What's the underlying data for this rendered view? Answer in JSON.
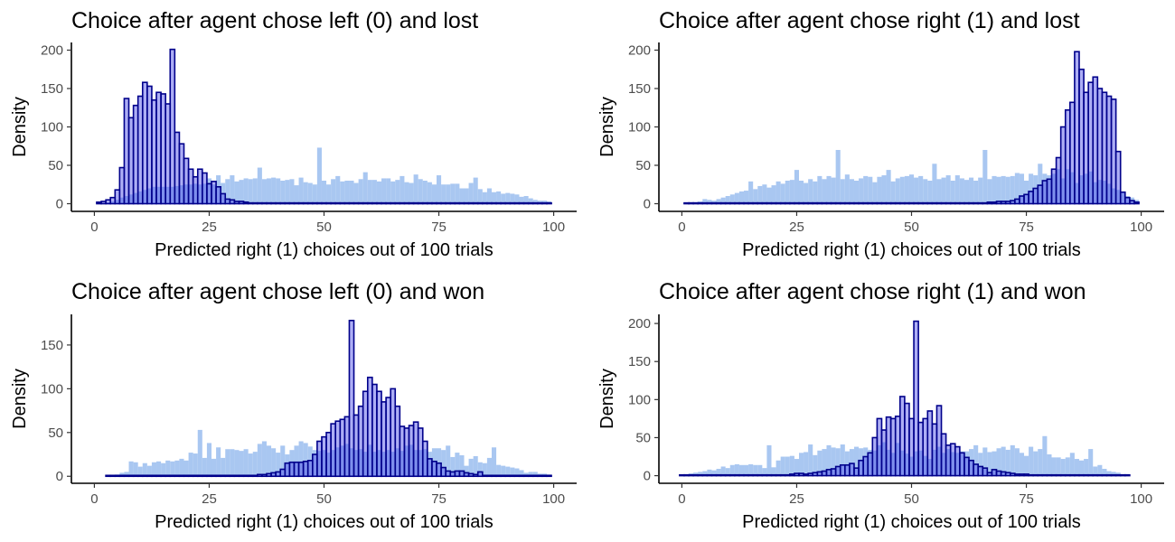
{
  "chart_data": [
    {
      "type": "bar",
      "title": "Choice after agent chose left (0) and lost",
      "xlabel": "Predicted right (1) choices out of 100 trials",
      "ylabel": "Density",
      "xlim": [
        -5,
        105
      ],
      "ylim": [
        -10,
        210
      ],
      "xticks": [
        0,
        25,
        50,
        75,
        100
      ],
      "yticks": [
        0,
        50,
        100,
        150,
        200
      ],
      "xtick_labels": [
        "0",
        "25",
        "50",
        "75",
        "100"
      ],
      "ytick_labels": [
        "0",
        "50",
        "100",
        "150",
        "200"
      ],
      "series": [
        {
          "role": "prior",
          "x_start": 1,
          "values": [
            1,
            1,
            2,
            3,
            5,
            8,
            10,
            12,
            14,
            16,
            18,
            20,
            22,
            22,
            22,
            22,
            22,
            23,
            24,
            25,
            25,
            26,
            25,
            26,
            33,
            25,
            37,
            27,
            32,
            37,
            29,
            31,
            33,
            32,
            33,
            47,
            32,
            33,
            34,
            33,
            30,
            31,
            32,
            24,
            34,
            28,
            27,
            25,
            73,
            30,
            25,
            32,
            36,
            29,
            30,
            30,
            27,
            32,
            41,
            31,
            31,
            29,
            33,
            33,
            29,
            31,
            36,
            28,
            27,
            38,
            32,
            30,
            28,
            25,
            37,
            25,
            25,
            26,
            26,
            20,
            20,
            27,
            34,
            19,
            15,
            20,
            15,
            16,
            13,
            14,
            13,
            12,
            9,
            10,
            7,
            5,
            4,
            4,
            3
          ]
        },
        {
          "role": "posterior",
          "x_start": 1,
          "values": [
            2,
            3,
            5,
            8,
            18,
            47,
            137,
            112,
            128,
            140,
            158,
            153,
            135,
            145,
            143,
            130,
            201,
            93,
            78,
            59,
            45,
            35,
            45,
            40,
            26,
            29,
            22,
            13,
            6,
            5,
            3,
            3,
            2,
            1,
            1,
            1,
            1,
            1,
            1,
            1,
            1,
            1,
            1,
            1,
            1,
            1,
            1,
            1,
            1,
            1,
            1,
            1,
            1,
            1,
            1,
            1,
            1,
            1,
            1,
            1,
            1,
            1,
            1,
            1,
            1,
            1,
            1,
            1,
            1,
            1,
            1,
            1,
            1,
            1,
            1,
            1,
            1,
            1,
            1,
            1,
            1,
            1,
            1,
            1,
            1,
            1,
            1,
            1,
            1,
            1,
            1,
            1,
            1,
            1,
            1,
            1,
            1,
            1,
            1
          ]
        }
      ],
      "colors": {
        "prior": "#a4c4f0",
        "posterior_fill": "#4a4ce8",
        "posterior_stroke": "#00008b"
      }
    },
    {
      "type": "bar",
      "title": "Choice after agent chose right (1) and lost",
      "xlabel": "Predicted right (1) choices out of 100 trials",
      "ylabel": "Density",
      "xlim": [
        -5,
        105
      ],
      "ylim": [
        -10,
        210
      ],
      "xticks": [
        0,
        25,
        50,
        75,
        100
      ],
      "yticks": [
        0,
        50,
        100,
        150,
        200
      ],
      "xtick_labels": [
        "0",
        "25",
        "50",
        "75",
        "100"
      ],
      "ytick_labels": [
        "0",
        "50",
        "100",
        "150",
        "200"
      ],
      "series": [
        {
          "role": "prior",
          "x_start": 1,
          "values": [
            1,
            2,
            2,
            3,
            6,
            5,
            4,
            6,
            8,
            10,
            12,
            14,
            16,
            17,
            29,
            19,
            23,
            25,
            21,
            24,
            29,
            26,
            30,
            31,
            44,
            30,
            27,
            32,
            29,
            36,
            32,
            36,
            34,
            70,
            32,
            38,
            32,
            30,
            33,
            36,
            35,
            28,
            35,
            37,
            44,
            29,
            33,
            35,
            36,
            38,
            34,
            36,
            32,
            30,
            52,
            32,
            34,
            37,
            30,
            37,
            33,
            31,
            34,
            30,
            34,
            70,
            32,
            36,
            35,
            36,
            35,
            36,
            40,
            39,
            30,
            39,
            37,
            52,
            39,
            37,
            39,
            45,
            33,
            45,
            41,
            27,
            37,
            39,
            42,
            28,
            31,
            30,
            26,
            20,
            18,
            14,
            10,
            8,
            5
          ]
        },
        {
          "role": "posterior",
          "x_start": 1,
          "values": [
            1,
            1,
            1,
            1,
            1,
            1,
            1,
            1,
            1,
            1,
            1,
            1,
            1,
            1,
            1,
            1,
            1,
            1,
            1,
            1,
            1,
            1,
            1,
            1,
            1,
            1,
            1,
            1,
            1,
            1,
            1,
            1,
            1,
            1,
            1,
            1,
            1,
            1,
            1,
            1,
            1,
            1,
            1,
            1,
            1,
            1,
            1,
            1,
            1,
            1,
            1,
            1,
            1,
            1,
            1,
            1,
            1,
            1,
            1,
            1,
            1,
            1,
            1,
            1,
            1,
            1,
            2,
            2,
            3,
            3,
            3,
            4,
            6,
            10,
            12,
            16,
            20,
            24,
            30,
            32,
            45,
            60,
            100,
            122,
            132,
            198,
            175,
            145,
            158,
            165,
            150,
            145,
            140,
            136,
            68,
            15,
            8,
            4,
            2
          ]
        }
      ],
      "colors": {
        "prior": "#a4c4f0",
        "posterior_fill": "#4a4ce8",
        "posterior_stroke": "#00008b"
      }
    },
    {
      "type": "bar",
      "title": "Choice after agent chose left (0) and won",
      "xlabel": "Predicted right (1) choices out of 100 trials",
      "ylabel": "Density",
      "xlim": [
        -5,
        105
      ],
      "ylim": [
        -8,
        185
      ],
      "xticks": [
        0,
        25,
        50,
        75,
        100
      ],
      "yticks": [
        0,
        50,
        100,
        150
      ],
      "xtick_labels": [
        "0",
        "25",
        "50",
        "75",
        "100"
      ],
      "ytick_labels": [
        "0",
        "50",
        "100",
        "150"
      ],
      "series": [
        {
          "role": "prior",
          "x_start": 3,
          "values": [
            1,
            1,
            2,
            4,
            5,
            17,
            16,
            11,
            15,
            12,
            16,
            17,
            15,
            18,
            17,
            18,
            20,
            18,
            27,
            26,
            53,
            21,
            38,
            20,
            33,
            21,
            31,
            31,
            30,
            29,
            31,
            26,
            28,
            37,
            40,
            35,
            32,
            27,
            35,
            25,
            30,
            35,
            40,
            38,
            34,
            30,
            29,
            30,
            27,
            30,
            33,
            35,
            37,
            32,
            30,
            31,
            28,
            36,
            28,
            30,
            28,
            30,
            28,
            32,
            29,
            35,
            36,
            30,
            30,
            31,
            28,
            32,
            32,
            30,
            35,
            22,
            27,
            24,
            12,
            20,
            23,
            16,
            15,
            21,
            33,
            13,
            12,
            11,
            10,
            9,
            7,
            4,
            5,
            5,
            3,
            3,
            2
          ]
        },
        {
          "role": "posterior",
          "x_start": 3,
          "values": [
            1,
            1,
            1,
            1,
            1,
            1,
            1,
            1,
            1,
            1,
            1,
            1,
            1,
            1,
            1,
            1,
            1,
            1,
            1,
            1,
            1,
            1,
            1,
            1,
            1,
            1,
            1,
            1,
            1,
            1,
            1,
            1,
            1,
            2,
            2,
            3,
            4,
            5,
            8,
            15,
            16,
            16,
            16,
            17,
            18,
            25,
            40,
            45,
            50,
            60,
            63,
            65,
            68,
            178,
            70,
            80,
            97,
            113,
            105,
            97,
            85,
            90,
            100,
            80,
            57,
            55,
            58,
            62,
            55,
            40,
            20,
            17,
            15,
            10,
            6,
            5,
            6,
            6,
            4,
            3,
            2,
            5,
            1,
            1,
            1,
            1,
            1,
            1,
            1,
            1,
            1,
            1,
            1,
            1,
            1,
            1,
            1
          ]
        }
      ],
      "colors": {
        "prior": "#a4c4f0",
        "posterior_fill": "#4a4ce8",
        "posterior_stroke": "#00008b"
      }
    },
    {
      "type": "bar",
      "title": "Choice after agent chose right (1) and won",
      "xlabel": "Predicted right (1) choices out of 100 trials",
      "ylabel": "Density",
      "xlim": [
        -5,
        105
      ],
      "ylim": [
        -10,
        212
      ],
      "xticks": [
        0,
        25,
        50,
        75,
        100
      ],
      "yticks": [
        0,
        50,
        100,
        150,
        200
      ],
      "xtick_labels": [
        "0",
        "25",
        "50",
        "75",
        "100"
      ],
      "ytick_labels": [
        "0",
        "50",
        "100",
        "150",
        "200"
      ],
      "series": [
        {
          "role": "prior",
          "x_start": 0,
          "values": [
            1,
            2,
            3,
            4,
            5,
            6,
            8,
            7,
            9,
            12,
            10,
            14,
            15,
            14,
            14,
            15,
            14,
            14,
            10,
            40,
            11,
            20,
            25,
            25,
            26,
            22,
            30,
            31,
            41,
            27,
            33,
            35,
            40,
            37,
            36,
            41,
            32,
            35,
            38,
            36,
            37,
            34,
            33,
            40,
            44,
            34,
            30,
            43,
            33,
            29,
            25,
            32,
            33,
            26,
            22,
            34,
            38,
            30,
            35,
            31,
            30,
            32,
            32,
            35,
            40,
            30,
            37,
            31,
            32,
            36,
            38,
            34,
            40,
            36,
            30,
            26,
            38,
            32,
            35,
            52,
            28,
            24,
            24,
            22,
            24,
            30,
            22,
            20,
            22,
            35,
            12,
            14,
            9,
            6,
            5,
            4,
            2,
            2
          ]
        },
        {
          "role": "posterior",
          "x_start": 0,
          "values": [
            1,
            1,
            1,
            1,
            1,
            1,
            1,
            1,
            1,
            1,
            1,
            1,
            1,
            1,
            1,
            1,
            1,
            1,
            1,
            1,
            1,
            1,
            1,
            1,
            2,
            3,
            3,
            2,
            3,
            4,
            5,
            6,
            8,
            9,
            12,
            14,
            14,
            16,
            10,
            20,
            25,
            30,
            50,
            75,
            60,
            77,
            75,
            78,
            104,
            95,
            75,
            203,
            70,
            75,
            85,
            68,
            92,
            55,
            40,
            42,
            38,
            30,
            24,
            20,
            15,
            12,
            10,
            4,
            8,
            6,
            5,
            4,
            3,
            2,
            2,
            2,
            1,
            1,
            1,
            1,
            1,
            1,
            1,
            1,
            1,
            1,
            1,
            1,
            1,
            1,
            1,
            1,
            1,
            1,
            1,
            1,
            1,
            1
          ]
        }
      ],
      "colors": {
        "prior": "#a4c4f0",
        "posterior_fill": "#4a4ce8",
        "posterior_stroke": "#00008b"
      }
    }
  ]
}
